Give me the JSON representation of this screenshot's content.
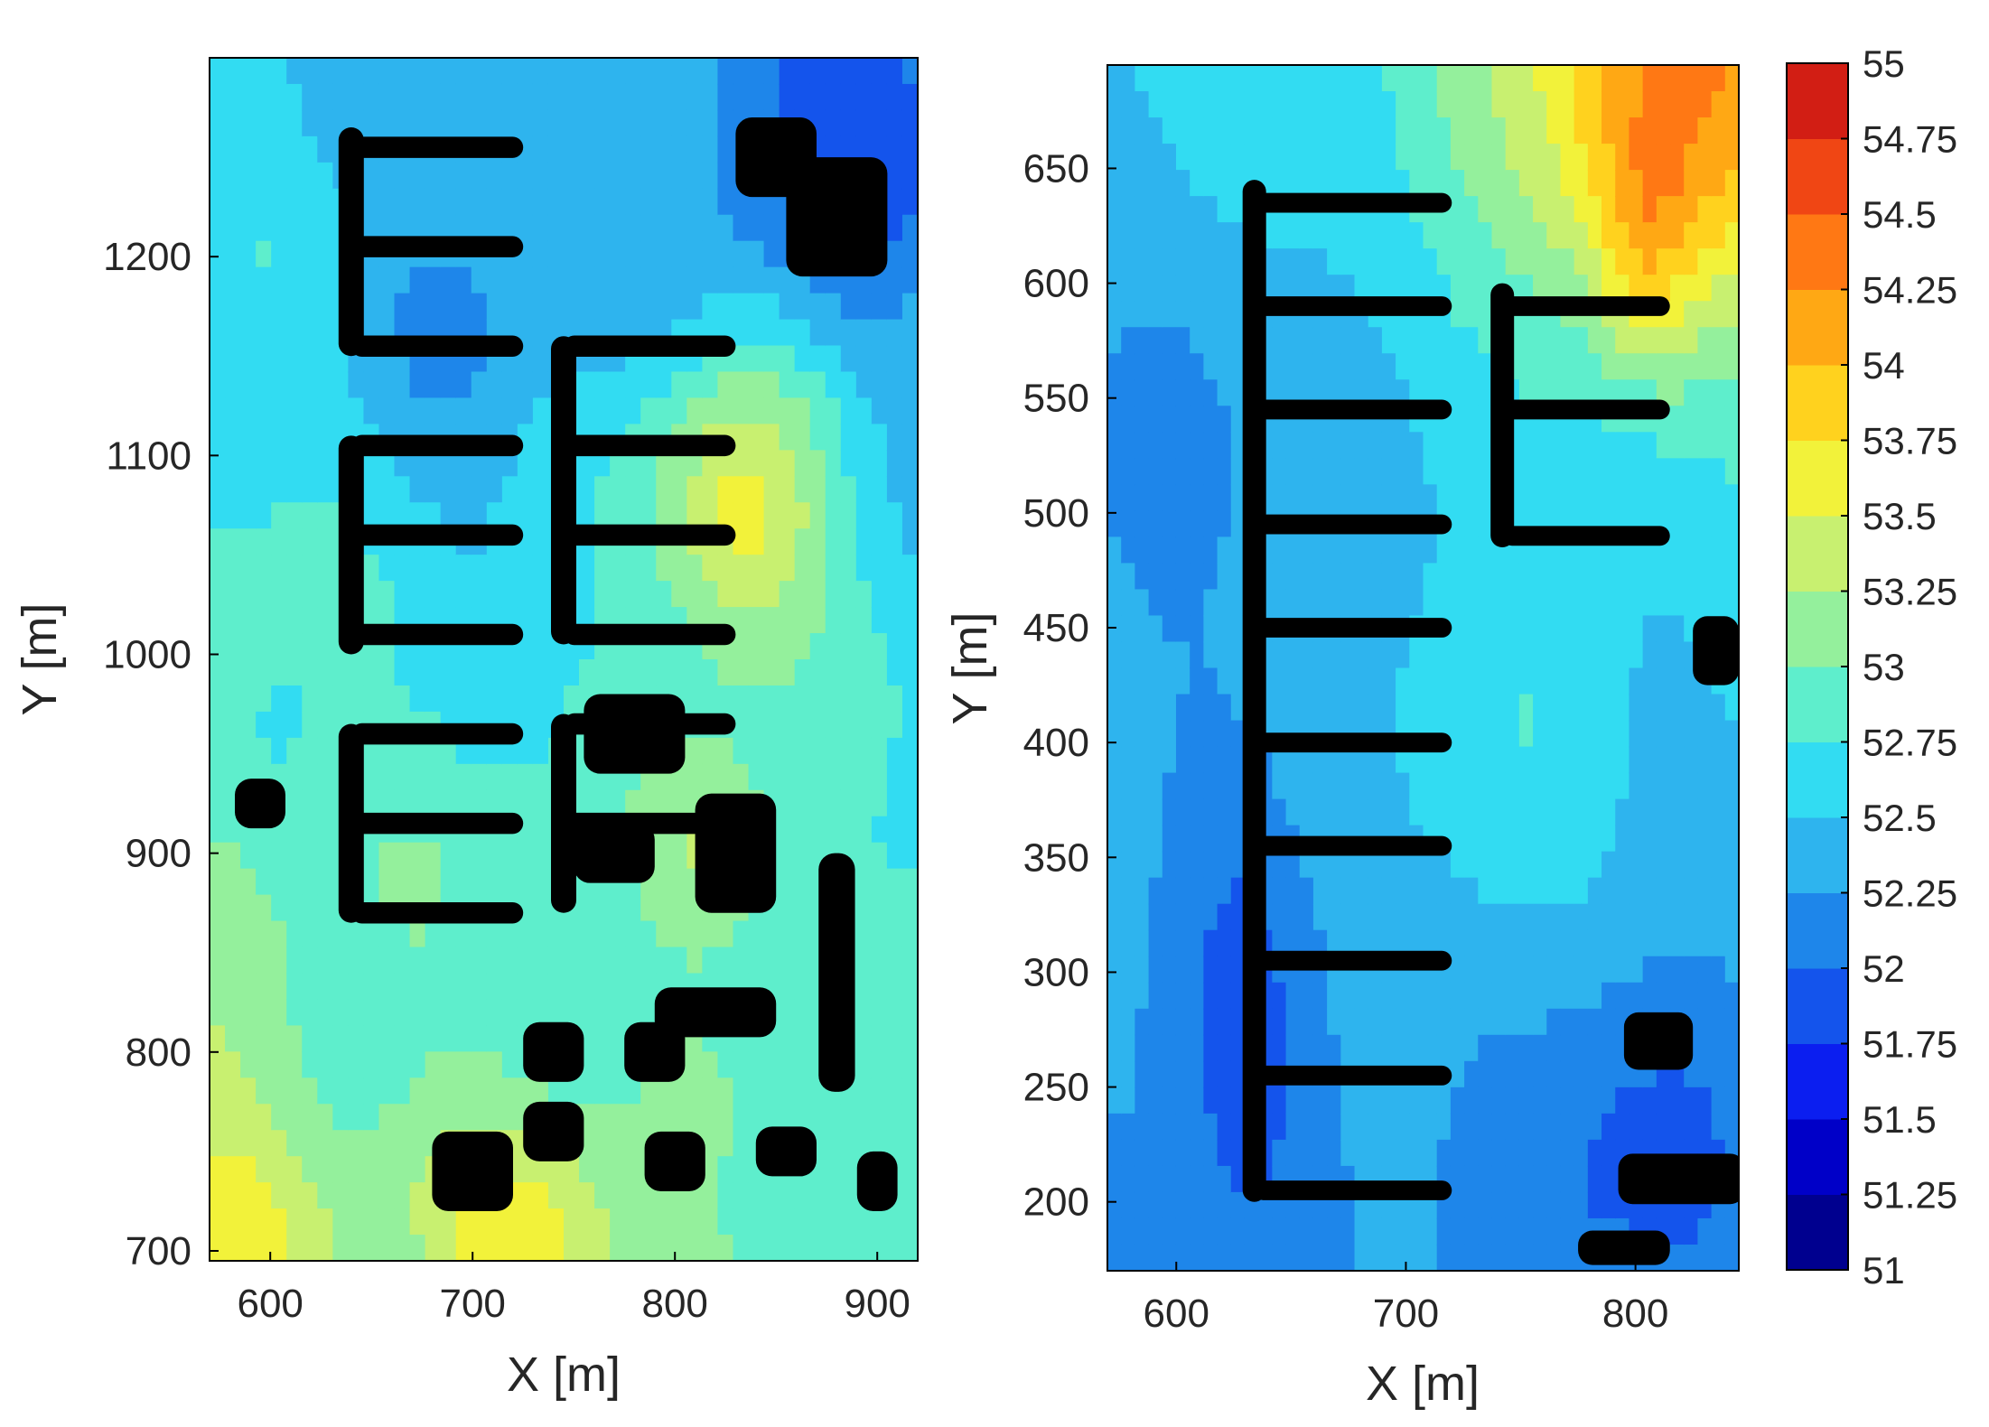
{
  "chart_data": [
    {
      "type": "heatmap",
      "subtype": "filled-contour",
      "title": "",
      "xlabel": "X [m]",
      "ylabel": "Y [m]",
      "xlim": [
        570,
        920
      ],
      "ylim": [
        695,
        1300
      ],
      "xticks": [
        600,
        700,
        800,
        900
      ],
      "yticks": [
        700,
        800,
        900,
        1000,
        1100,
        1200
      ],
      "xtick_labels": [
        "600",
        "700",
        "800",
        "900"
      ],
      "ytick_labels": [
        "700",
        "800",
        "900",
        "1000",
        "1100",
        "1200"
      ],
      "obstacle_color": "#000000",
      "grid": false
    },
    {
      "type": "heatmap",
      "subtype": "filled-contour",
      "title": "",
      "xlabel": "X [m]",
      "ylabel": "Y [m]",
      "xlim": [
        570,
        845
      ],
      "ylim": [
        170,
        695
      ],
      "xticks": [
        600,
        700,
        800
      ],
      "yticks": [
        200,
        250,
        300,
        350,
        400,
        450,
        500,
        550,
        600,
        650
      ],
      "xtick_labels": [
        "600",
        "700",
        "800"
      ],
      "ytick_labels": [
        "200",
        "250",
        "300",
        "350",
        "400",
        "450",
        "500",
        "550",
        "600",
        "650"
      ],
      "obstacle_color": "#000000",
      "grid": false
    }
  ],
  "colorbar": {
    "min": 51,
    "max": 55,
    "step": 0.25,
    "ticks": [
      55,
      54.75,
      54.5,
      54.25,
      54,
      53.75,
      53.5,
      53.25,
      53,
      52.75,
      52.5,
      52.25,
      52,
      51.75,
      51.5,
      51.25,
      51
    ],
    "tick_labels": [
      "55",
      "54.75",
      "54.5",
      "54.25",
      "54",
      "53.75",
      "53.5",
      "53.25",
      "53",
      "52.75",
      "52.5",
      "52.25",
      "52",
      "51.75",
      "51.5",
      "51.25",
      "51"
    ],
    "colors": [
      "#00008f",
      "#0000c8",
      "#0b1ef0",
      "#1454ec",
      "#1e86ea",
      "#2eb4ee",
      "#32dcf2",
      "#5eeecc",
      "#94f09c",
      "#c8f070",
      "#f2f23a",
      "#ffd21e",
      "#ffa814",
      "#ff7814",
      "#f04614",
      "#d21e14",
      "#8c0a0a"
    ]
  }
}
